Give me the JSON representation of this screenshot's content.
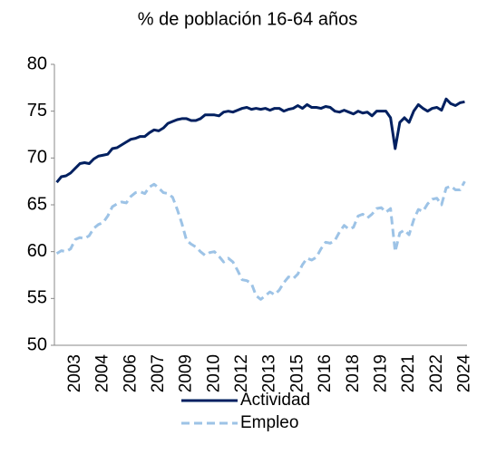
{
  "chart_data": {
    "type": "line",
    "title": "% de población 16-64 años",
    "categories": [
      null,
      null,
      null,
      null,
      "2003",
      null,
      null,
      null,
      null,
      null,
      "2004",
      null,
      null,
      null,
      null,
      null,
      "2006",
      null,
      null,
      null,
      null,
      null,
      "2007",
      null,
      null,
      null,
      null,
      null,
      "2009",
      null,
      null,
      null,
      null,
      null,
      "2010",
      null,
      null,
      null,
      null,
      null,
      "2012",
      null,
      null,
      null,
      null,
      null,
      "2013",
      null,
      null,
      null,
      null,
      null,
      "2015",
      null,
      null,
      null,
      null,
      null,
      "2016",
      null,
      null,
      null,
      null,
      null,
      "2018",
      null,
      null,
      null,
      null,
      null,
      "2019",
      null,
      null,
      null,
      null,
      null,
      "2021",
      null,
      null,
      null,
      null,
      null,
      "2022",
      null,
      null,
      null,
      null,
      null,
      "2024"
    ],
    "series": [
      {
        "name": "Actividad",
        "color": "#002060",
        "dash": false,
        "values": [
          67.4,
          68.0,
          68.1,
          68.4,
          68.9,
          69.4,
          69.5,
          69.4,
          69.9,
          70.2,
          70.3,
          70.4,
          71.0,
          71.1,
          71.4,
          71.7,
          72.0,
          72.1,
          72.3,
          72.3,
          72.7,
          73.0,
          72.9,
          73.2,
          73.7,
          73.9,
          74.1,
          74.2,
          74.2,
          74.0,
          74.0,
          74.2,
          74.6,
          74.6,
          74.6,
          74.5,
          74.9,
          75.0,
          74.9,
          75.1,
          75.3,
          75.4,
          75.2,
          75.3,
          75.2,
          75.3,
          75.1,
          75.3,
          75.3,
          75.0,
          75.2,
          75.3,
          75.6,
          75.3,
          75.7,
          75.4,
          75.4,
          75.3,
          75.5,
          75.4,
          75.0,
          74.9,
          75.1,
          74.9,
          74.7,
          75.0,
          74.8,
          74.9,
          74.5,
          75.0,
          75.0,
          75.0,
          74.3,
          71.0,
          73.8,
          74.3,
          73.8,
          75.0,
          75.7,
          75.3,
          75.0,
          75.3,
          75.4,
          75.1,
          76.3,
          75.8,
          75.6,
          75.9,
          76.0
        ]
      },
      {
        "name": "Empleo",
        "color": "#9dc3e6",
        "dash": true,
        "values": [
          59.8,
          60.1,
          60.0,
          60.3,
          61.3,
          61.5,
          61.4,
          61.7,
          62.5,
          62.9,
          63.1,
          63.8,
          64.8,
          65.1,
          65.3,
          65.2,
          65.9,
          66.3,
          66.4,
          66.2,
          66.9,
          67.2,
          66.8,
          66.3,
          66.2,
          65.8,
          64.5,
          63.0,
          61.2,
          60.8,
          60.5,
          60.0,
          59.6,
          59.9,
          60.0,
          59.5,
          58.9,
          59.3,
          58.9,
          58.0,
          57.0,
          56.9,
          56.6,
          55.3,
          54.9,
          55.3,
          55.7,
          55.4,
          55.9,
          56.7,
          57.3,
          57.1,
          57.6,
          58.6,
          59.3,
          59.1,
          59.4,
          60.3,
          61.0,
          60.9,
          61.2,
          62.1,
          62.8,
          62.4,
          62.6,
          63.8,
          64.0,
          63.6,
          64.0,
          64.6,
          64.7,
          64.2,
          64.6,
          60.0,
          62.0,
          62.3,
          61.8,
          63.4,
          64.5,
          64.3,
          65.1,
          65.6,
          65.7,
          65.0,
          66.8,
          67.0,
          66.6,
          66.6,
          67.5
        ]
      }
    ],
    "ylim": [
      50,
      80
    ],
    "yticks": [
      50,
      55,
      60,
      65,
      70,
      75,
      80
    ],
    "grid": false,
    "legend": "bottom"
  }
}
